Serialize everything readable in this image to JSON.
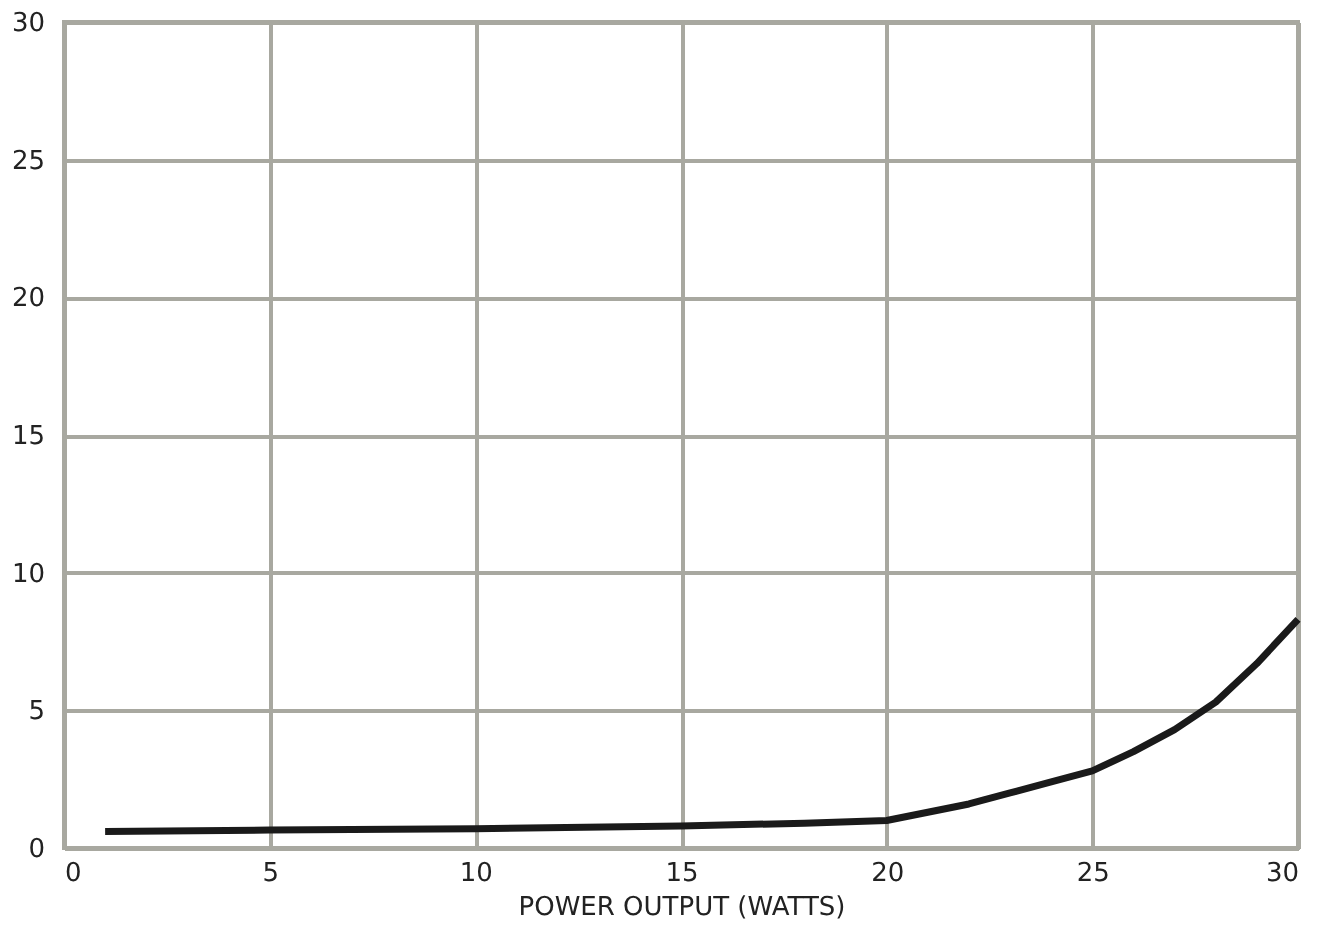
{
  "chart_data": {
    "type": "line",
    "xlabel": "POWER OUTPUT (WATTS)",
    "xlim": [
      0,
      30
    ],
    "xticks": [
      0,
      5,
      10,
      15,
      20,
      25,
      30
    ],
    "ylim": [
      0,
      30
    ],
    "yticks": [
      0,
      5,
      10,
      15,
      20,
      25,
      30
    ],
    "grid": true,
    "marker": "none",
    "line_style": "solid",
    "series": [
      {
        "color": "#1a1a1a",
        "x": [
          1,
          5,
          10,
          15,
          18,
          20,
          21,
          22,
          23,
          24,
          25,
          26,
          27,
          28,
          29,
          30
        ],
        "values": [
          0.6,
          0.65,
          0.7,
          0.8,
          0.9,
          1.0,
          1.3,
          1.6,
          2.0,
          2.4,
          2.8,
          3.5,
          4.3,
          5.3,
          6.7,
          8.3
        ]
      }
    ]
  }
}
